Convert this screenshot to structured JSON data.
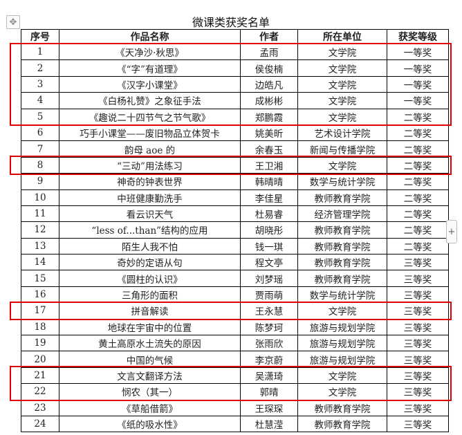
{
  "title": "微课类获奖名单",
  "headers": [
    "序号",
    "作品名称",
    "作者",
    "所在单位",
    "获奖等级"
  ],
  "rows": [
    [
      "1",
      "《天净沙·秋思》",
      "孟雨",
      "文学院",
      "一等奖"
    ],
    [
      "2",
      "《“字”有道理》",
      "侯俊楠",
      "文学院",
      "一等奖"
    ],
    [
      "3",
      "《汉字小课堂》",
      "边皓凡",
      "文学院",
      "一等奖"
    ],
    [
      "4",
      "《白杨礼赞》之象征手法",
      "成彬彬",
      "文学院",
      "一等奖"
    ],
    [
      "5",
      "《趣说二十四节气之节气歌》",
      "郑鹏霞",
      "文学院",
      "二等奖"
    ],
    [
      "6",
      "巧手小课堂——废旧物品立体贺卡",
      "姚美昕",
      "艺术设计学院",
      "二等奖"
    ],
    [
      "7",
      "韵母 aoe 的",
      "余春玉",
      "新闻与传播学院",
      "二等奖"
    ],
    [
      "8",
      "“三动”用法练习",
      "王卫湘",
      "文学院",
      "二等奖"
    ],
    [
      "9",
      "神奇的钟表世界",
      "韩晴晴",
      "数学与统计学院",
      "二等奖"
    ],
    [
      "10",
      "中班健康勤洗手",
      "李佳星",
      "教师教育学院",
      "二等奖"
    ],
    [
      "11",
      "看云识天气",
      "杜易睿",
      "经济管理学院",
      "二等奖"
    ],
    [
      "12",
      "“less of...than”结构的应用",
      "胡晓彤",
      "教师教育学院",
      "二等奖"
    ],
    [
      "13",
      "陌生人我不怕",
      "钱一琪",
      "教师教育学院",
      "二等奖"
    ],
    [
      "14",
      "奇妙的定语从句",
      "程文亭",
      "教师教育学院",
      "三等奖"
    ],
    [
      "15",
      "《圆柱的认识》",
      "刘梦瑶",
      "教师教育学院",
      "三等奖"
    ],
    [
      "16",
      "三角形的面积",
      "贾雨萌",
      "数学与统计学院",
      "三等奖"
    ],
    [
      "17",
      "拼音解读",
      "王永慧",
      "文学院",
      "三等奖"
    ],
    [
      "18",
      "地球在宇宙中的位置",
      "陈梦珂",
      "旅游与规划学院",
      "三等奖"
    ],
    [
      "19",
      "黄土高原水土流失的原因",
      "张雨欣",
      "旅游与规划学院",
      "三等奖"
    ],
    [
      "20",
      "中国的气候",
      "李京蔚",
      "旅游与规划学院",
      "三等奖"
    ],
    [
      "21",
      "文言文翻译方法",
      "吴潇琦",
      "文学院",
      "三等奖"
    ],
    [
      "22",
      "悯农（其一）",
      "郭晴",
      "文学院",
      "三等奖"
    ],
    [
      "23",
      "《草船借箭》",
      "王琛琛",
      "教师教育学院",
      "三等奖"
    ],
    [
      "24",
      "《纸的吸水性》",
      "杜慧滢",
      "教师教育学院",
      "三等奖"
    ]
  ],
  "highlight_groups": [
    [
      1,
      5
    ],
    [
      8,
      8
    ],
    [
      17,
      17
    ],
    [
      21,
      22
    ]
  ],
  "highlight_color": "#e00000",
  "icons": {
    "move": "move-arrows-icon",
    "add": "plus-icon"
  },
  "plus_label": "+"
}
